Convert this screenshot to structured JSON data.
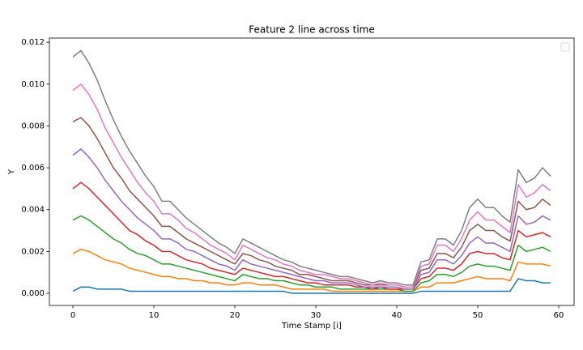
{
  "chart_data": {
    "type": "line",
    "title": "Feature 2 line across time",
    "xlabel": "Time Stamp [i]",
    "ylabel": "Y",
    "x": [
      0,
      1,
      2,
      3,
      4,
      5,
      6,
      7,
      8,
      9,
      10,
      11,
      12,
      13,
      14,
      15,
      16,
      17,
      18,
      19,
      20,
      21,
      22,
      23,
      24,
      25,
      26,
      27,
      28,
      29,
      30,
      31,
      32,
      33,
      34,
      35,
      36,
      37,
      38,
      39,
      40,
      41,
      42,
      43,
      44,
      45,
      46,
      47,
      48,
      49,
      50,
      51,
      52,
      53,
      54,
      55,
      56,
      57,
      58,
      59
    ],
    "xlim": [
      -2.9,
      61.9
    ],
    "xticks": [
      0,
      10,
      20,
      30,
      40,
      50,
      60
    ],
    "ylim": [
      -0.00058,
      0.0122
    ],
    "yticks": [
      {
        "value": 0,
        "label": "0.000"
      },
      {
        "value": 0.002,
        "label": "0.002"
      },
      {
        "value": 0.004,
        "label": "0.004"
      },
      {
        "value": 0.006,
        "label": "0.006"
      },
      {
        "value": 0.008,
        "label": "0.008"
      },
      {
        "value": 0.01,
        "label": "0.010"
      },
      {
        "value": 0.012,
        "label": "0.012"
      }
    ],
    "legend": "upper right",
    "series": [
      {
        "color": "#1f77b4",
        "values": [
          0.0001,
          0.0003,
          0.0003,
          0.0002,
          0.0002,
          0.0002,
          0.0002,
          0.0001,
          0.0001,
          0.0001,
          0.0001,
          0.0001,
          0.0001,
          0.0001,
          0.0001,
          0.0001,
          0.0001,
          0.0001,
          0.0001,
          0.0001,
          0.0001,
          0.0001,
          0.0001,
          0.0001,
          0.0001,
          0.0001,
          0.0001,
          0,
          0,
          0,
          0,
          0,
          0,
          0,
          0,
          0,
          0,
          0,
          0,
          0,
          0,
          0,
          0,
          0.0001,
          0.0001,
          0.0001,
          0.0001,
          0.0001,
          0.0001,
          0.0001,
          0.0001,
          0.0001,
          0.0001,
          0.0001,
          0.0001,
          0.0007,
          0.0006,
          0.0006,
          0.0005,
          0.0005
        ]
      },
      {
        "color": "#ff7f0e",
        "values": [
          0.0019,
          0.0021,
          0.002,
          0.0018,
          0.0016,
          0.0015,
          0.0014,
          0.0012,
          0.0011,
          0.001,
          0.0009,
          0.0008,
          0.0008,
          0.0007,
          0.0007,
          0.0006,
          0.0006,
          0.0005,
          0.0005,
          0.0004,
          0.0004,
          0.0005,
          0.0005,
          0.0004,
          0.0004,
          0.0004,
          0.0003,
          0.0002,
          0.0002,
          0.0002,
          0.0002,
          0.0002,
          0.0001,
          0.0001,
          0.0001,
          0.0001,
          0.0001,
          0.0001,
          0.0001,
          0.0001,
          0.0001,
          0.0001,
          0.0001,
          0.0003,
          0.0003,
          0.0005,
          0.0005,
          0.0005,
          0.0006,
          0.0007,
          0.0008,
          0.0007,
          0.0007,
          0.0007,
          0.0006,
          0.0015,
          0.0014,
          0.0014,
          0.0014,
          0.0013
        ]
      },
      {
        "color": "#2ca02c",
        "values": [
          0.0035,
          0.0037,
          0.0035,
          0.0032,
          0.0029,
          0.0026,
          0.0024,
          0.0021,
          0.0019,
          0.0018,
          0.0016,
          0.0014,
          0.0014,
          0.0013,
          0.0012,
          0.0011,
          0.001,
          0.0009,
          0.0008,
          0.0007,
          0.0006,
          0.0009,
          0.0008,
          0.0007,
          0.0007,
          0.0006,
          0.0006,
          0.0005,
          0.0004,
          0.0004,
          0.0003,
          0.0003,
          0.0003,
          0.0002,
          0.0002,
          0.0002,
          0.0002,
          0.0002,
          0.0002,
          0.0002,
          0.0002,
          0.0001,
          0.0001,
          0.0005,
          0.0006,
          0.0009,
          0.0009,
          0.0008,
          0.001,
          0.0013,
          0.0014,
          0.0013,
          0.0013,
          0.0012,
          0.0011,
          0.0023,
          0.002,
          0.0021,
          0.0022,
          0.002
        ]
      },
      {
        "color": "#d62728",
        "values": [
          0.005,
          0.0053,
          0.005,
          0.0046,
          0.0042,
          0.0038,
          0.0034,
          0.003,
          0.0028,
          0.0025,
          0.0023,
          0.002,
          0.002,
          0.0018,
          0.0016,
          0.0015,
          0.0014,
          0.0012,
          0.0011,
          0.001,
          0.0009,
          0.0012,
          0.0011,
          0.001,
          0.0009,
          0.0008,
          0.0008,
          0.0007,
          0.0006,
          0.0005,
          0.0005,
          0.0004,
          0.0004,
          0.0004,
          0.0004,
          0.0003,
          0.0003,
          0.0002,
          0.0003,
          0.0002,
          0.0002,
          0.0002,
          0.0002,
          0.0007,
          0.0008,
          0.0012,
          0.0012,
          0.0011,
          0.0014,
          0.0019,
          0.002,
          0.0019,
          0.0019,
          0.0017,
          0.0016,
          0.003,
          0.0027,
          0.0028,
          0.0029,
          0.0027
        ]
      },
      {
        "color": "#9467bd",
        "values": [
          0.0066,
          0.0069,
          0.0065,
          0.006,
          0.0054,
          0.0049,
          0.0044,
          0.004,
          0.0036,
          0.0033,
          0.003,
          0.0026,
          0.0026,
          0.0024,
          0.0021,
          0.002,
          0.0018,
          0.0016,
          0.0014,
          0.0013,
          0.0011,
          0.0016,
          0.0014,
          0.0013,
          0.0012,
          0.0011,
          0.001,
          0.0009,
          0.0008,
          0.0007,
          0.0006,
          0.0006,
          0.0005,
          0.0005,
          0.0005,
          0.0004,
          0.0003,
          0.0003,
          0.0003,
          0.0003,
          0.0003,
          0.0002,
          0.0002,
          0.0009,
          0.001,
          0.0016,
          0.0016,
          0.0014,
          0.0018,
          0.0024,
          0.0027,
          0.0024,
          0.0024,
          0.0022,
          0.002,
          0.0037,
          0.0033,
          0.0034,
          0.0037,
          0.0035
        ]
      },
      {
        "color": "#8c564b",
        "values": [
          0.0082,
          0.0084,
          0.008,
          0.0074,
          0.0067,
          0.006,
          0.0055,
          0.0049,
          0.0045,
          0.0041,
          0.0037,
          0.0032,
          0.0032,
          0.0029,
          0.0026,
          0.0024,
          0.0022,
          0.002,
          0.0018,
          0.0016,
          0.0014,
          0.0019,
          0.0018,
          0.0016,
          0.0015,
          0.0013,
          0.0012,
          0.0011,
          0.0009,
          0.0009,
          0.0008,
          0.0007,
          0.0006,
          0.0006,
          0.0006,
          0.0005,
          0.0004,
          0.0004,
          0.0004,
          0.0004,
          0.0004,
          0.0003,
          0.0003,
          0.0011,
          0.0012,
          0.0019,
          0.0019,
          0.0017,
          0.0022,
          0.003,
          0.0033,
          0.003,
          0.003,
          0.0027,
          0.0025,
          0.0044,
          0.004,
          0.0041,
          0.0045,
          0.0042
        ]
      },
      {
        "color": "#e377c2",
        "values": [
          0.0097,
          0.01,
          0.0095,
          0.0088,
          0.0079,
          0.0072,
          0.0065,
          0.0059,
          0.0053,
          0.0048,
          0.0044,
          0.0038,
          0.0038,
          0.0035,
          0.0031,
          0.0029,
          0.0026,
          0.0023,
          0.0021,
          0.0019,
          0.0016,
          0.0023,
          0.0021,
          0.0019,
          0.0017,
          0.0016,
          0.0014,
          0.0013,
          0.0011,
          0.001,
          0.0009,
          0.0009,
          0.0008,
          0.0007,
          0.0007,
          0.0006,
          0.0005,
          0.0004,
          0.0005,
          0.0004,
          0.0004,
          0.0003,
          0.0003,
          0.0013,
          0.0014,
          0.0023,
          0.0023,
          0.002,
          0.0026,
          0.0035,
          0.0039,
          0.0035,
          0.0035,
          0.0032,
          0.0029,
          0.0052,
          0.0046,
          0.0048,
          0.0052,
          0.0049
        ]
      },
      {
        "color": "#7f7f7f",
        "values": [
          0.0113,
          0.0116,
          0.011,
          0.0102,
          0.0092,
          0.0083,
          0.0075,
          0.0068,
          0.0062,
          0.0056,
          0.0051,
          0.0044,
          0.0044,
          0.004,
          0.0036,
          0.0033,
          0.003,
          0.0027,
          0.0024,
          0.0022,
          0.0019,
          0.0026,
          0.0024,
          0.0022,
          0.002,
          0.0018,
          0.0016,
          0.0015,
          0.0013,
          0.0012,
          0.0011,
          0.001,
          0.0009,
          0.0008,
          0.0008,
          0.0007,
          0.0006,
          0.0005,
          0.0006,
          0.0005,
          0.0005,
          0.0004,
          0.0004,
          0.0015,
          0.0016,
          0.0026,
          0.0026,
          0.0023,
          0.003,
          0.0041,
          0.0045,
          0.0041,
          0.0041,
          0.0037,
          0.0034,
          0.0059,
          0.0053,
          0.0055,
          0.006,
          0.0056
        ]
      }
    ]
  }
}
